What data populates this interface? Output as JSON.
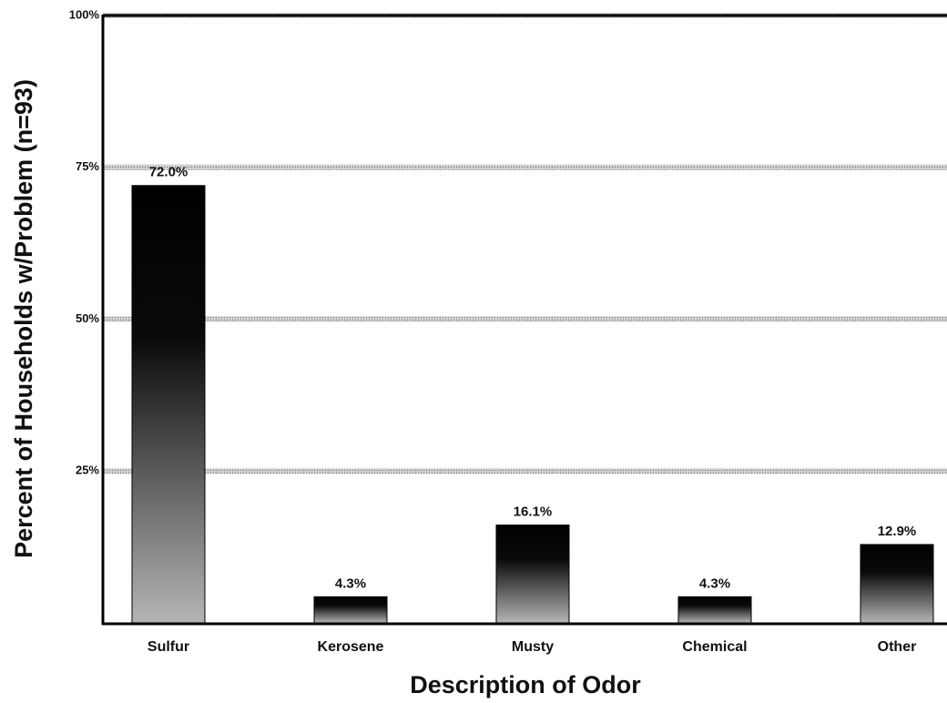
{
  "chart_data": {
    "type": "bar",
    "categories": [
      "Sulfur",
      "Kerosene",
      "Musty",
      "Chemical",
      "Other"
    ],
    "values": [
      72.0,
      4.3,
      16.1,
      4.3,
      12.9
    ],
    "value_labels": [
      "72.0%",
      "4.3%",
      "16.1%",
      "4.3%",
      "12.9%"
    ],
    "color": "#000000",
    "ylim": [
      0,
      100
    ],
    "yticks": [
      {
        "value": 25,
        "label": "25%"
      },
      {
        "value": 50,
        "label": "50%"
      },
      {
        "value": 75,
        "label": "75%"
      },
      {
        "value": 100,
        "label": "100%"
      }
    ],
    "grid": true,
    "xlabel": "Description of Odor",
    "ylabel": "Percent of Households w/Problem (n=93)"
  }
}
